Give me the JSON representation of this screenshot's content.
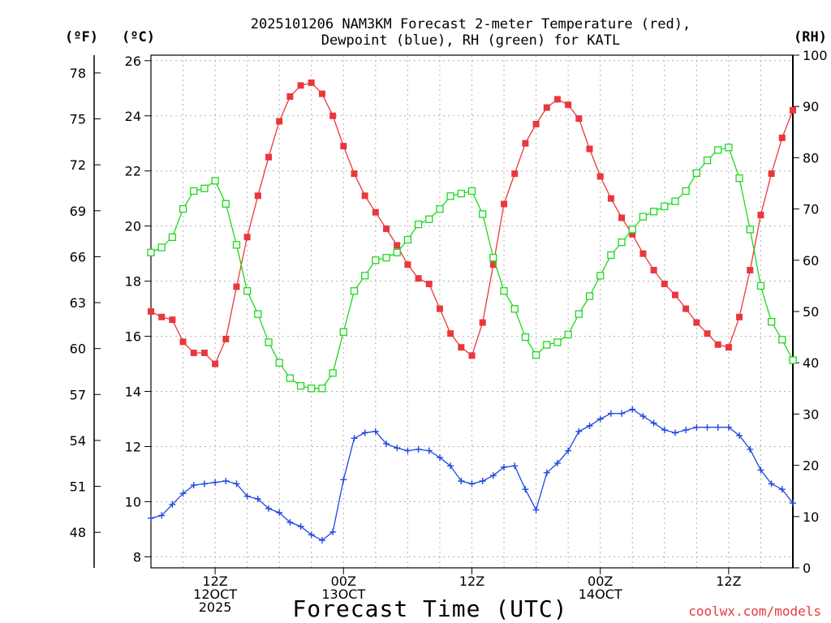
{
  "chart_data": {
    "type": "line",
    "title_line1": "2025101206 NAM3KM Forecast 2-meter Temperature (red),",
    "title_line2": "Dewpoint (blue), RH (green) for KATL",
    "left_unit_f": "(ºF)",
    "left_unit_c": "(ºC)",
    "right_unit": "(RH)",
    "xlabel": "Forecast Time (UTC)",
    "credit": "coolwx.com/models",
    "y_c_ticks": [
      "8",
      "10",
      "12",
      "14",
      "16",
      "18",
      "20",
      "22",
      "24",
      "26"
    ],
    "y_f_ticks": [
      "48",
      "51",
      "54",
      "57",
      "60",
      "63",
      "66",
      "69",
      "72",
      "75",
      "78"
    ],
    "y_rh_ticks": [
      "0",
      "10",
      "20",
      "30",
      "40",
      "50",
      "60",
      "70",
      "80",
      "90",
      "100"
    ],
    "x_ticks": [
      {
        "hour": 6,
        "lines": [
          "12Z",
          "12OCT",
          "2025"
        ]
      },
      {
        "hour": 18,
        "lines": [
          "00Z",
          "13OCT"
        ]
      },
      {
        "hour": 30,
        "lines": [
          "12Z"
        ]
      },
      {
        "hour": 42,
        "lines": [
          "00Z",
          "14OCT"
        ]
      },
      {
        "hour": 54,
        "lines": [
          "12Z"
        ]
      }
    ],
    "x_range_hours": [
      0,
      60
    ],
    "y_range_c": [
      7.6,
      26.2
    ],
    "y_range_rh": [
      0,
      100
    ],
    "x_hours": [
      0,
      1,
      2,
      3,
      4,
      5,
      6,
      7,
      8,
      9,
      10,
      11,
      12,
      13,
      14,
      15,
      16,
      17,
      18,
      19,
      20,
      21,
      22,
      23,
      24,
      25,
      26,
      27,
      28,
      29,
      30,
      31,
      32,
      33,
      34,
      35,
      36,
      37,
      38,
      39,
      40,
      41,
      42,
      43,
      44,
      45,
      46,
      47,
      48,
      49,
      50,
      51,
      52,
      53,
      54,
      55,
      56,
      57,
      58,
      59,
      60
    ],
    "series": [
      {
        "name": "Temperature",
        "unit": "C",
        "color": "#e8383d",
        "marker": "filled-square",
        "values": [
          16.9,
          16.7,
          16.6,
          15.8,
          15.4,
          15.4,
          15.0,
          15.9,
          17.8,
          19.6,
          21.1,
          22.5,
          23.8,
          24.7,
          25.1,
          25.2,
          24.8,
          24.0,
          22.9,
          21.9,
          21.1,
          20.5,
          19.9,
          19.3,
          18.6,
          18.1,
          17.9,
          17.0,
          16.1,
          15.6,
          15.3,
          16.5,
          18.6,
          20.8,
          21.9,
          23.0,
          23.7,
          24.3,
          24.6,
          24.4,
          23.9,
          22.8,
          21.8,
          21.0,
          20.3,
          19.7,
          19.0,
          18.4,
          17.9,
          17.5,
          17.0,
          16.5,
          16.1,
          15.7,
          15.6,
          16.7,
          18.4,
          20.4,
          21.9,
          23.2,
          24.2
        ]
      },
      {
        "name": "Dewpoint",
        "unit": "C",
        "color": "#2047e0",
        "marker": "plus",
        "values": [
          9.4,
          9.5,
          9.9,
          10.3,
          10.6,
          10.65,
          10.7,
          10.75,
          10.65,
          10.2,
          10.1,
          9.75,
          9.6,
          9.25,
          9.1,
          8.8,
          8.6,
          8.9,
          10.8,
          12.3,
          12.5,
          12.55,
          12.1,
          11.95,
          11.85,
          11.9,
          11.85,
          11.6,
          11.3,
          10.75,
          10.65,
          10.75,
          10.95,
          11.25,
          11.3,
          10.45,
          9.7,
          11.05,
          11.4,
          11.85,
          12.55,
          12.75,
          13.0,
          13.2,
          13.2,
          13.35,
          13.1,
          12.85,
          12.6,
          12.5,
          12.6,
          12.7,
          12.7,
          12.7,
          12.7,
          12.4,
          11.9,
          11.15,
          10.65,
          10.45,
          9.95
        ]
      },
      {
        "name": "RH",
        "unit": "%",
        "color": "#1ed81e",
        "marker": "open-square",
        "values": [
          61.5,
          62.5,
          64.5,
          70.0,
          73.5,
          74.0,
          75.5,
          71.0,
          63.0,
          54.0,
          49.5,
          44.0,
          40.0,
          37.0,
          35.5,
          35.0,
          35.0,
          38.0,
          46.0,
          54.0,
          57.0,
          60.0,
          60.5,
          61.5,
          64.0,
          67.0,
          68.0,
          70.0,
          72.5,
          73.0,
          73.5,
          69.0,
          60.5,
          54.0,
          50.5,
          45.0,
          41.5,
          43.5,
          44.0,
          45.5,
          49.5,
          53.0,
          57.0,
          61.0,
          63.5,
          66.0,
          68.5,
          69.5,
          70.5,
          71.5,
          73.5,
          77.0,
          79.5,
          81.5,
          82.0,
          76.0,
          66.0,
          55.0,
          48.0,
          44.5,
          40.5
        ]
      }
    ]
  }
}
